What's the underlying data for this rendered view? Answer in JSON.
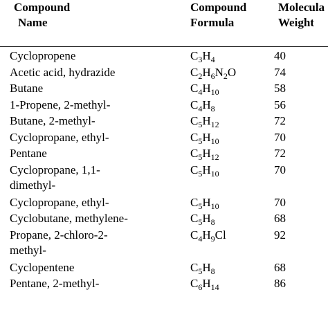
{
  "header": {
    "name": [
      "Compound",
      "Name"
    ],
    "formula": [
      "Compound",
      "Formula"
    ],
    "mw": [
      "Molecula",
      "Weight"
    ]
  },
  "rows": [
    {
      "name": [
        "Cyclopropene"
      ],
      "formula": [
        [
          "C",
          ""
        ],
        [
          "3",
          "s"
        ],
        [
          "H",
          ""
        ],
        [
          "4",
          "s"
        ]
      ],
      "mw": "40"
    },
    {
      "name": [
        "Acetic acid, hydrazide"
      ],
      "formula": [
        [
          "C",
          ""
        ],
        [
          "2",
          "s"
        ],
        [
          "H",
          ""
        ],
        [
          "6",
          "s"
        ],
        [
          "N",
          ""
        ],
        [
          "2",
          "s"
        ],
        [
          "O",
          ""
        ]
      ],
      "mw": "74"
    },
    {
      "name": [
        "Butane"
      ],
      "formula": [
        [
          "C",
          ""
        ],
        [
          "4",
          "s"
        ],
        [
          "H",
          ""
        ],
        [
          "10",
          "s"
        ]
      ],
      "mw": "58"
    },
    {
      "name": [
        "1-Propene, 2-methyl-"
      ],
      "formula": [
        [
          "C",
          ""
        ],
        [
          "4",
          "s"
        ],
        [
          "H",
          ""
        ],
        [
          "8",
          "s"
        ]
      ],
      "mw": "56"
    },
    {
      "name": [
        "Butane, 2-methyl-"
      ],
      "formula": [
        [
          "C",
          ""
        ],
        [
          "5",
          "s"
        ],
        [
          "H",
          ""
        ],
        [
          "12",
          "s"
        ]
      ],
      "mw": "72"
    },
    {
      "name": [
        "Cyclopropane, ethyl-"
      ],
      "formula": [
        [
          "C",
          ""
        ],
        [
          "5",
          "s"
        ],
        [
          "H",
          ""
        ],
        [
          "10",
          "s"
        ]
      ],
      "mw": "70"
    },
    {
      "name": [
        "Pentane"
      ],
      "formula": [
        [
          "C",
          ""
        ],
        [
          "5",
          "s"
        ],
        [
          "H",
          ""
        ],
        [
          "12",
          "s"
        ]
      ],
      "mw": "72"
    },
    {
      "name": [
        "Cyclopropane, 1,1-",
        "dimethyl-"
      ],
      "formula": [
        [
          "C",
          ""
        ],
        [
          "5",
          "s"
        ],
        [
          "H",
          ""
        ],
        [
          "10",
          "s"
        ]
      ],
      "mw": "70"
    },
    {
      "name": [
        "Cyclopropane, ethyl-"
      ],
      "formula": [
        [
          "C",
          ""
        ],
        [
          "5",
          "s"
        ],
        [
          "H",
          ""
        ],
        [
          "10",
          "s"
        ]
      ],
      "mw": "70"
    },
    {
      "name": [
        "Cyclobutane, methylene-"
      ],
      "formula": [
        [
          "C",
          ""
        ],
        [
          "5",
          "s"
        ],
        [
          "H",
          ""
        ],
        [
          "8",
          "s"
        ]
      ],
      "mw": "68"
    },
    {
      "name": [
        "Propane, 2-chloro-2-",
        "methyl-"
      ],
      "formula": [
        [
          "C",
          ""
        ],
        [
          "4",
          "s"
        ],
        [
          "H",
          ""
        ],
        [
          "9",
          "s"
        ],
        [
          "Cl",
          ""
        ]
      ],
      "mw": "92"
    },
    {
      "name": [
        "Cyclopentene"
      ],
      "formula": [
        [
          "C",
          ""
        ],
        [
          "5",
          "s"
        ],
        [
          "H",
          ""
        ],
        [
          "8",
          "s"
        ]
      ],
      "mw": "68"
    },
    {
      "name": [
        "Pentane, 2-methyl-"
      ],
      "formula": [
        [
          "C",
          ""
        ],
        [
          "6",
          "s"
        ],
        [
          "H",
          ""
        ],
        [
          "14",
          "s"
        ]
      ],
      "mw": "86"
    }
  ]
}
